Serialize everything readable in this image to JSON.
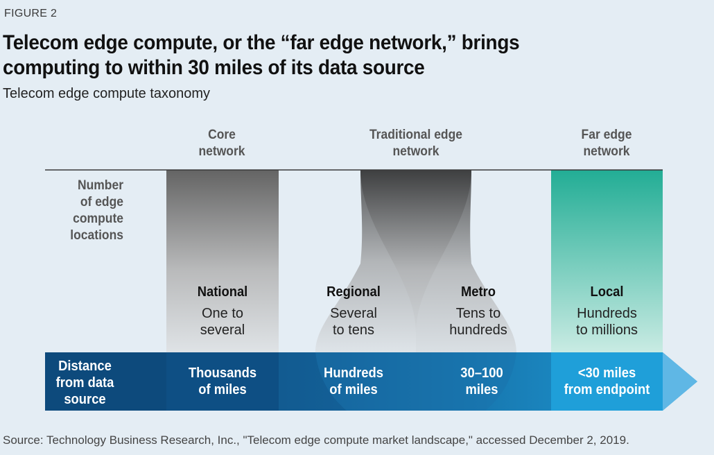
{
  "figure_label": "FIGURE 2",
  "title": "Telecom edge compute, or the “far edge network,” brings computing to within 30 miles of its data source",
  "subtitle": "Telecom edge compute taxonomy",
  "column_headers": {
    "core": [
      "Core",
      "network"
    ],
    "traditional": [
      "Traditional edge",
      "network"
    ],
    "far": [
      "Far edge",
      "network"
    ]
  },
  "row_label": [
    "Number",
    "of edge",
    "compute",
    "locations"
  ],
  "segments": [
    {
      "name": "National",
      "count": [
        "One to",
        "several"
      ],
      "distance": [
        "Thousands",
        "of miles"
      ]
    },
    {
      "name": "Regional",
      "count": [
        "Several",
        "to tens"
      ],
      "distance": [
        "Hundreds",
        "of miles"
      ]
    },
    {
      "name": "Metro",
      "count": [
        "Tens to",
        "hundreds"
      ],
      "distance": [
        "30–100",
        "miles"
      ]
    },
    {
      "name": "Local",
      "count": [
        "Hundreds",
        "to millions"
      ],
      "distance": [
        "<30 miles",
        "from endpoint"
      ]
    }
  ],
  "bar_label": [
    "Distance",
    "from data",
    "source"
  ],
  "source": "Source: Technology Business Research, Inc., \"Telecom edge compute market landscape,\" accessed December 2, 2019.",
  "colors": {
    "background": "#e4edf4",
    "bar_dark": "#0d4a7c",
    "bar_light": "#1d9ad6",
    "arrow_tip": "#5fb7e5",
    "far_edge_top": "#22ad95",
    "far_edge_bottom": "#c9ebe3"
  }
}
